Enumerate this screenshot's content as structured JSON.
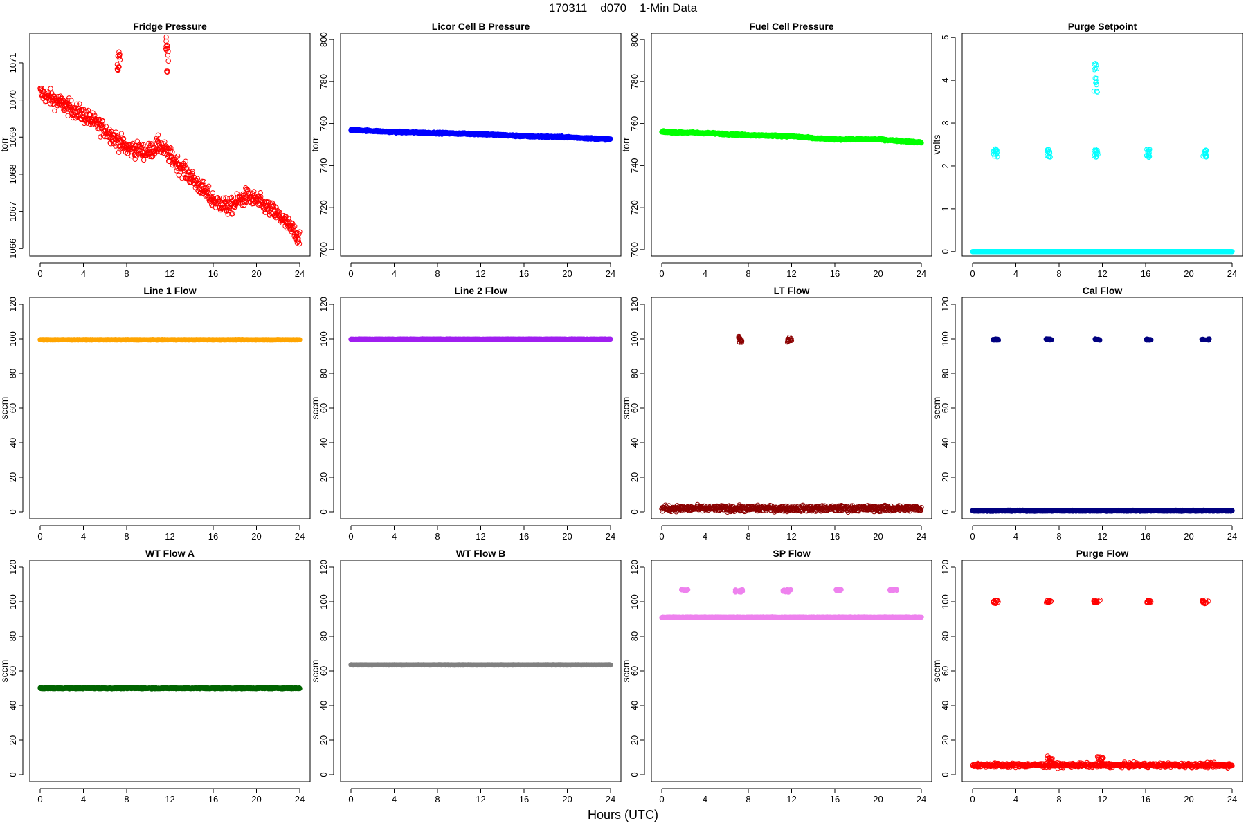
{
  "page": {
    "title": "170311    d070    1-Min Data",
    "xlabel": "Hours (UTC)"
  },
  "chart_data": [
    {
      "type": "scatter",
      "title": "Fridge Pressure",
      "ylabel": "torr",
      "color": "#ff0000",
      "filled": false,
      "xlim": [
        0,
        24
      ],
      "ylim": [
        1065.8,
        1071.8
      ],
      "xticks": [
        0,
        4,
        8,
        12,
        16,
        20,
        24
      ],
      "yticks": [
        1066,
        1067,
        1068,
        1069,
        1070,
        1071
      ],
      "trend": [
        [
          0,
          1070.2
        ],
        [
          2,
          1069.9
        ],
        [
          4,
          1069.6
        ],
        [
          6,
          1069.2
        ],
        [
          8,
          1068.7
        ],
        [
          10,
          1068.6
        ],
        [
          11,
          1068.8
        ],
        [
          12,
          1068.5
        ],
        [
          14,
          1067.9
        ],
        [
          16,
          1067.3
        ],
        [
          17.5,
          1067.1
        ],
        [
          19,
          1067.4
        ],
        [
          20,
          1067.3
        ],
        [
          22,
          1066.9
        ],
        [
          24,
          1066.3
        ]
      ],
      "noise": 0.22,
      "outliers": [
        {
          "x": [
            7.1,
            7.4
          ],
          "y": [
            1070.5,
            1071.3
          ]
        },
        {
          "x": [
            11.6,
            11.9
          ],
          "y": [
            1070.7,
            1071.7
          ]
        }
      ]
    },
    {
      "type": "scatter",
      "title": "Licor Cell B Pressure",
      "ylabel": "torr",
      "color": "#0000ff",
      "filled": true,
      "xlim": [
        0,
        24
      ],
      "ylim": [
        697,
        803
      ],
      "xticks": [
        0,
        4,
        8,
        12,
        16,
        20,
        24
      ],
      "yticks": [
        700,
        720,
        740,
        760,
        780,
        800
      ],
      "trend": [
        [
          0,
          757
        ],
        [
          4,
          756
        ],
        [
          8,
          755.5
        ],
        [
          12,
          755
        ],
        [
          16,
          754
        ],
        [
          20,
          753.5
        ],
        [
          24,
          752.5
        ]
      ],
      "noise": 0.4,
      "outliers": []
    },
    {
      "type": "scatter",
      "title": "Fuel Cell Pressure",
      "ylabel": "torr",
      "color": "#00ff00",
      "filled": true,
      "xlim": [
        0,
        24
      ],
      "ylim": [
        697,
        803
      ],
      "xticks": [
        0,
        4,
        8,
        12,
        16,
        20,
        24
      ],
      "yticks": [
        700,
        720,
        740,
        760,
        780,
        800
      ],
      "trend": [
        [
          0,
          756
        ],
        [
          4,
          755.5
        ],
        [
          8,
          754.5
        ],
        [
          12,
          754
        ],
        [
          14,
          753
        ],
        [
          16,
          752.5
        ],
        [
          20,
          752.5
        ],
        [
          24,
          751
        ]
      ],
      "noise": 0.4,
      "outliers": []
    },
    {
      "type": "scatter",
      "title": "Purge Setpoint",
      "ylabel": "volts",
      "color": "#00ffff",
      "filled": false,
      "xlim": [
        0,
        24
      ],
      "ylim": [
        -0.1,
        5.1
      ],
      "xticks": [
        0,
        4,
        8,
        12,
        16,
        20,
        24
      ],
      "yticks": [
        0,
        1,
        2,
        3,
        4,
        5
      ],
      "trend": [
        [
          0,
          0
        ],
        [
          24,
          0
        ]
      ],
      "noise": 0,
      "outliers": [
        {
          "x": [
            1.9,
            2.3
          ],
          "y": [
            2.2,
            2.4
          ]
        },
        {
          "x": [
            6.9,
            7.2
          ],
          "y": [
            2.2,
            2.4
          ]
        },
        {
          "x": [
            11.2,
            11.6
          ],
          "y": [
            2.2,
            2.4
          ]
        },
        {
          "x": [
            11.2,
            11.6
          ],
          "y": [
            3.7,
            4.6
          ]
        },
        {
          "x": [
            16.1,
            16.4
          ],
          "y": [
            2.2,
            2.4
          ]
        },
        {
          "x": [
            21.3,
            21.7
          ],
          "y": [
            2.2,
            2.4
          ]
        }
      ]
    },
    {
      "type": "scatter",
      "title": "Line 1 Flow",
      "ylabel": "sccm",
      "color": "#ffa500",
      "filled": true,
      "xlim": [
        0,
        24
      ],
      "ylim": [
        -4,
        124
      ],
      "xticks": [
        0,
        4,
        8,
        12,
        16,
        20,
        24
      ],
      "yticks": [
        0,
        20,
        40,
        60,
        80,
        100,
        120
      ],
      "trend": [
        [
          0,
          99.5
        ],
        [
          24,
          99.5
        ]
      ],
      "noise": 0.15,
      "outliers": []
    },
    {
      "type": "scatter",
      "title": "Line 2 Flow",
      "ylabel": "sccm",
      "color": "#a020f0",
      "filled": true,
      "xlim": [
        0,
        24
      ],
      "ylim": [
        -4,
        124
      ],
      "xticks": [
        0,
        4,
        8,
        12,
        16,
        20,
        24
      ],
      "yticks": [
        0,
        20,
        40,
        60,
        80,
        100,
        120
      ],
      "trend": [
        [
          0,
          99.8
        ],
        [
          24,
          99.8
        ]
      ],
      "noise": 0.15,
      "outliers": []
    },
    {
      "type": "scatter",
      "title": "LT Flow",
      "ylabel": "sccm",
      "color": "#8b0000",
      "filled": false,
      "xlim": [
        0,
        24
      ],
      "ylim": [
        -4,
        124
      ],
      "xticks": [
        0,
        4,
        8,
        12,
        16,
        20,
        24
      ],
      "yticks": [
        0,
        20,
        40,
        60,
        80,
        100,
        120
      ],
      "trend": [
        [
          0,
          2
        ],
        [
          24,
          2
        ]
      ],
      "noise": 1.6,
      "outliers": [
        {
          "x": [
            7.1,
            7.4
          ],
          "y": [
            97.5,
            101.5
          ]
        },
        {
          "x": [
            11.6,
            12
          ],
          "y": [
            97.5,
            101.5
          ]
        }
      ]
    },
    {
      "type": "scatter",
      "title": "Cal Flow",
      "ylabel": "sccm",
      "color": "#000080",
      "filled": true,
      "xlim": [
        0,
        24
      ],
      "ylim": [
        -4,
        124
      ],
      "xticks": [
        0,
        4,
        8,
        12,
        16,
        20,
        24
      ],
      "yticks": [
        0,
        20,
        40,
        60,
        80,
        100,
        120
      ],
      "trend": [
        [
          0,
          0.7
        ],
        [
          24,
          0.7
        ]
      ],
      "noise": 0.25,
      "outliers": [
        {
          "x": [
            1.9,
            2.4
          ],
          "y": [
            99.3,
            100
          ]
        },
        {
          "x": [
            6.8,
            7.3
          ],
          "y": [
            99.3,
            100
          ]
        },
        {
          "x": [
            11.2,
            11.8
          ],
          "y": [
            99.3,
            100
          ]
        },
        {
          "x": [
            16.1,
            16.5
          ],
          "y": [
            99.3,
            100
          ]
        },
        {
          "x": [
            21.2,
            21.9
          ],
          "y": [
            99.3,
            100
          ]
        }
      ]
    },
    {
      "type": "scatter",
      "title": "WT Flow A",
      "ylabel": "sccm",
      "color": "#006400",
      "filled": true,
      "xlim": [
        0,
        24
      ],
      "ylim": [
        -4,
        124
      ],
      "xticks": [
        0,
        4,
        8,
        12,
        16,
        20,
        24
      ],
      "yticks": [
        0,
        20,
        40,
        60,
        80,
        100,
        120
      ],
      "trend": [
        [
          0,
          50
        ],
        [
          24,
          50
        ]
      ],
      "noise": 0.3,
      "outliers": []
    },
    {
      "type": "scatter",
      "title": "WT Flow B",
      "ylabel": "sccm",
      "color": "#808080",
      "filled": true,
      "xlim": [
        0,
        24
      ],
      "ylim": [
        -4,
        124
      ],
      "xticks": [
        0,
        4,
        8,
        12,
        16,
        20,
        24
      ],
      "yticks": [
        0,
        20,
        40,
        60,
        80,
        100,
        120
      ],
      "trend": [
        [
          0,
          63.5
        ],
        [
          24,
          63.5
        ]
      ],
      "noise": 0.1,
      "outliers": []
    },
    {
      "type": "scatter",
      "title": "SP Flow",
      "ylabel": "sccm",
      "color": "#ee82ee",
      "filled": true,
      "xlim": [
        0,
        24
      ],
      "ylim": [
        -4,
        124
      ],
      "xticks": [
        0,
        4,
        8,
        12,
        16,
        20,
        24
      ],
      "yticks": [
        0,
        20,
        40,
        60,
        80,
        100,
        120
      ],
      "trend": [
        [
          0,
          91
        ],
        [
          24,
          91
        ]
      ],
      "noise": 0.2,
      "outliers": [
        {
          "x": [
            1.8,
            2.6
          ],
          "y": [
            106.5,
            107.2
          ]
        },
        {
          "x": [
            6.8,
            7.5
          ],
          "y": [
            105.5,
            107.2
          ]
        },
        {
          "x": [
            11.2,
            12
          ],
          "y": [
            105.5,
            107.2
          ]
        },
        {
          "x": [
            16.1,
            16.6
          ],
          "y": [
            106.5,
            107.2
          ]
        },
        {
          "x": [
            21.1,
            21.8
          ],
          "y": [
            106.5,
            107.2
          ]
        }
      ]
    },
    {
      "type": "scatter",
      "title": "Purge Flow",
      "ylabel": "sccm",
      "color": "#ff0000",
      "filled": false,
      "xlim": [
        0,
        24
      ],
      "ylim": [
        -4,
        124
      ],
      "xticks": [
        0,
        4,
        8,
        12,
        16,
        20,
        24
      ],
      "yticks": [
        0,
        20,
        40,
        60,
        80,
        100,
        120
      ],
      "trend": [
        [
          0,
          5.5
        ],
        [
          24,
          5.5
        ]
      ],
      "noise": 1.2,
      "outliers": [
        {
          "x": [
            1.9,
            2.4
          ],
          "y": [
            99,
            101
          ]
        },
        {
          "x": [
            6.8,
            7.3
          ],
          "y": [
            99.5,
            101
          ]
        },
        {
          "x": [
            11.2,
            11.8
          ],
          "y": [
            99.5,
            101
          ]
        },
        {
          "x": [
            16.1,
            16.5
          ],
          "y": [
            99.5,
            101
          ]
        },
        {
          "x": [
            21.2,
            21.9
          ],
          "y": [
            99,
            101
          ]
        },
        {
          "x": [
            6.9,
            7.4
          ],
          "y": [
            7,
            11
          ]
        },
        {
          "x": [
            11.5,
            12.1
          ],
          "y": [
            6,
            10.5
          ]
        }
      ]
    }
  ]
}
